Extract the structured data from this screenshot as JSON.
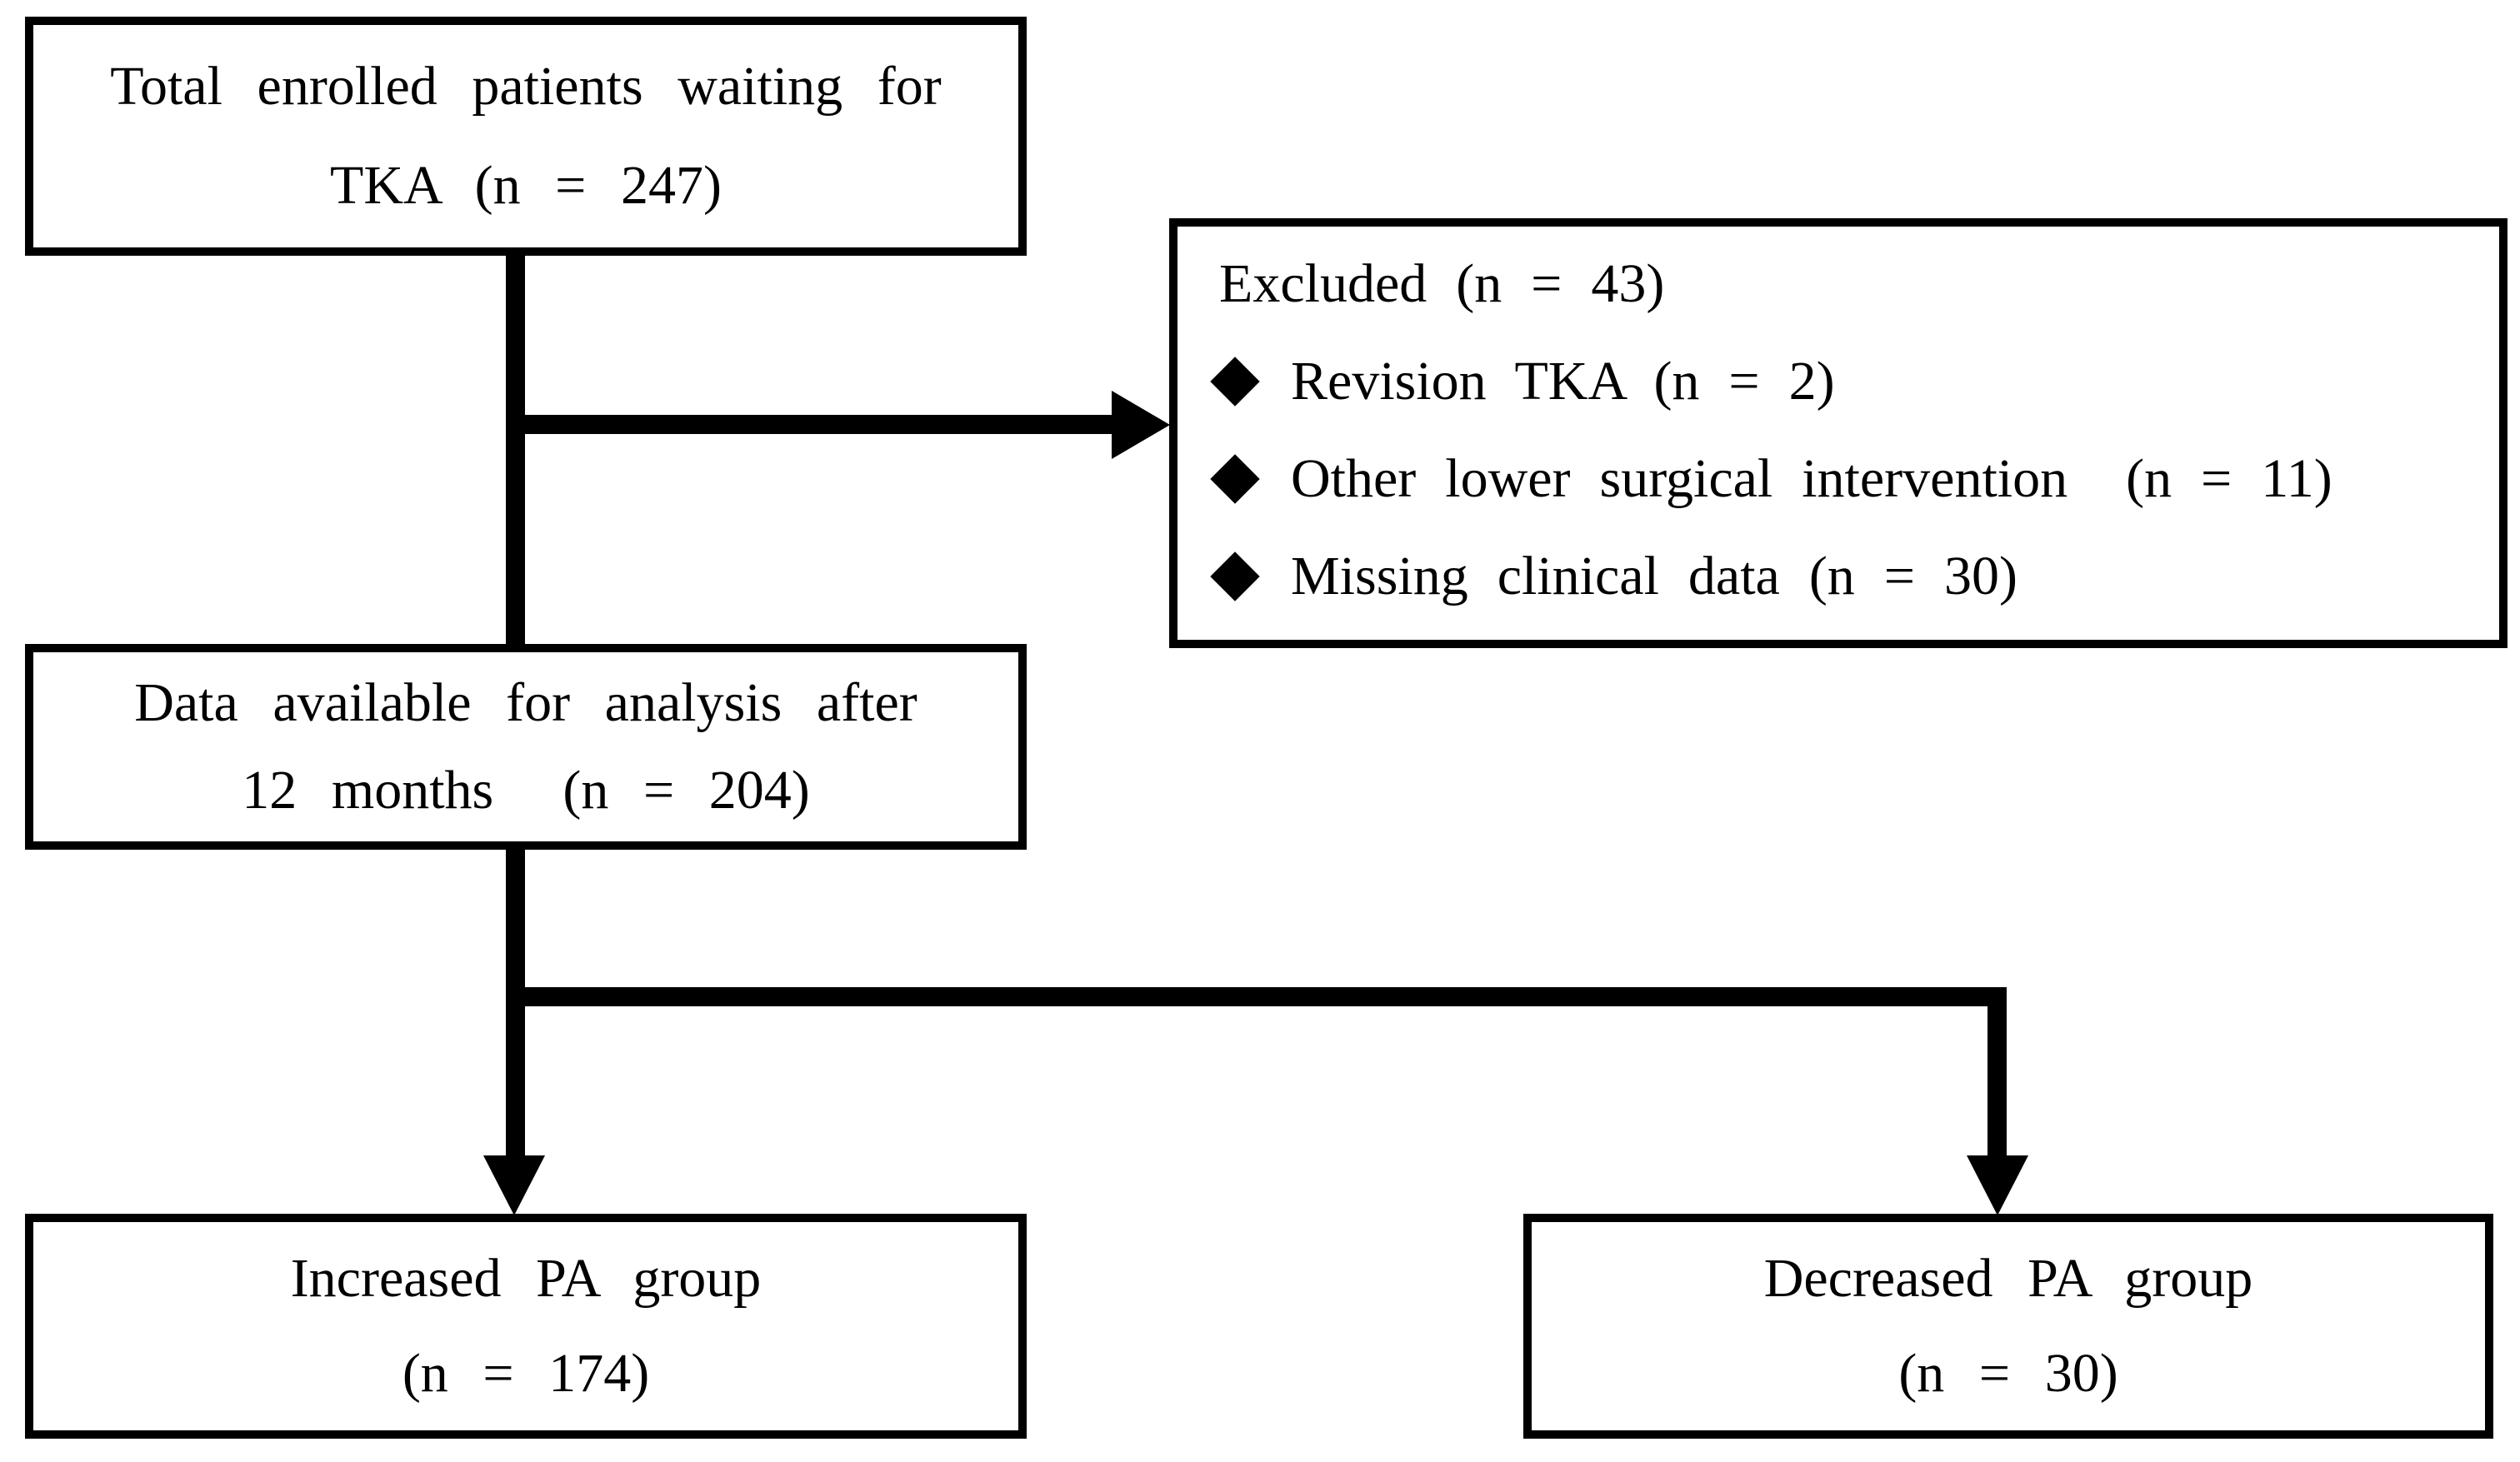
{
  "figure": {
    "type": "flow-diagram",
    "background": "#ffffff",
    "ink_color": "#000000",
    "boxes": {
      "enrolled": {
        "lines": [
          "Total enrolled patients waiting for",
          "TKA (n = 247)"
        ]
      },
      "excluded": {
        "title": "Excluded (n = 43)",
        "bullet_icon": "diamond-icon",
        "items": [
          "Revision TKA (n = 2)",
          "Other lower surgical intervention  (n = 11)",
          "Missing clinical data (n = 30)"
        ]
      },
      "available": {
        "lines": [
          "Data available for analysis after",
          "12 months  (n = 204)"
        ]
      },
      "increased": {
        "lines": [
          "Increased PA group",
          "(n = 174)"
        ]
      },
      "decreased": {
        "lines": [
          "Decreased PA group",
          "(n = 30)"
        ]
      }
    }
  }
}
